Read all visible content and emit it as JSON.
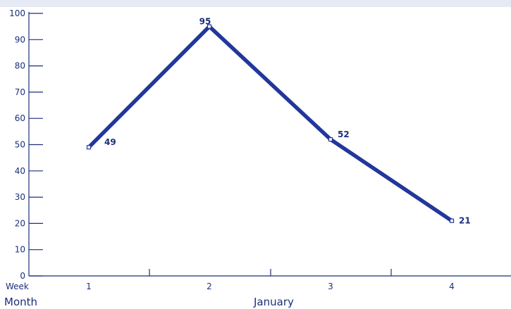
{
  "chart_data": {
    "type": "line",
    "categories": [
      "1",
      "2",
      "3",
      "4"
    ],
    "series": [
      {
        "values": [
          49,
          95,
          52,
          21
        ]
      }
    ],
    "x_row_label": "Week",
    "group_row_label": "Month",
    "group_label": "January",
    "ylim": [
      0,
      100
    ],
    "yticks": [
      0,
      10,
      20,
      30,
      40,
      50,
      60,
      70,
      80,
      90,
      100
    ],
    "grid": false,
    "legend": "none",
    "colors": {
      "line": "#22379a",
      "axis": "#1b2f7a",
      "top_band": "#e6eaf4"
    }
  }
}
